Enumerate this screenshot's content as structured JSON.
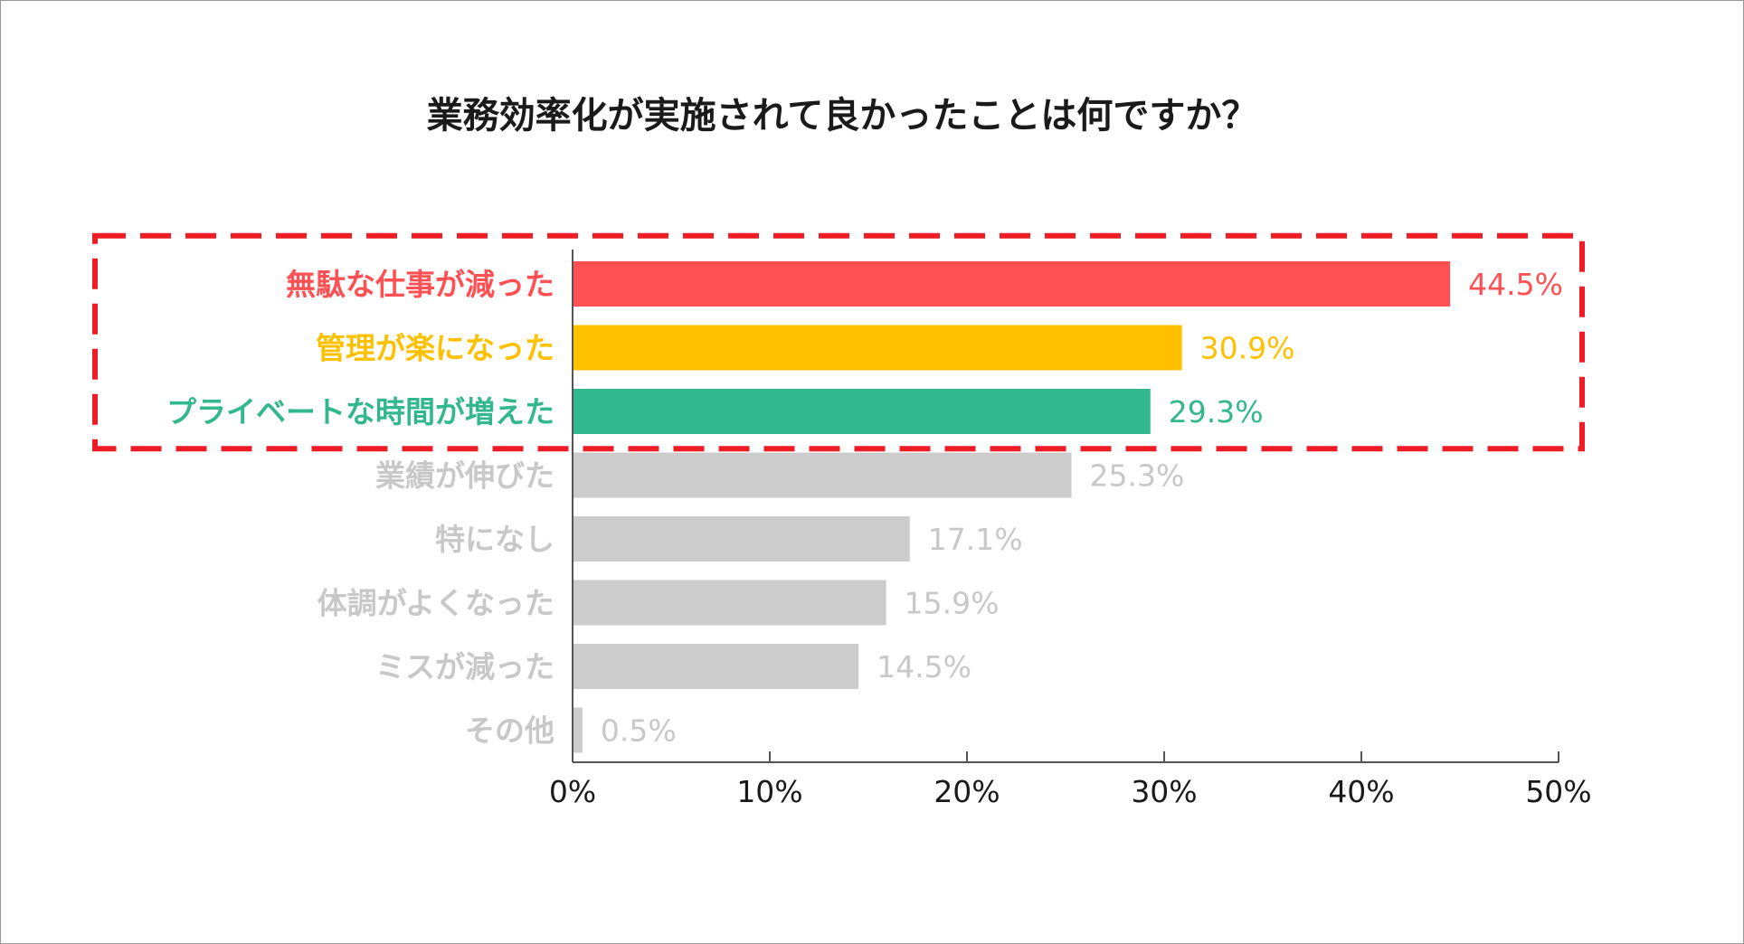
{
  "chart_data": {
    "type": "bar",
    "orientation": "horizontal",
    "title": "業務効率化が実施されて良かったことは何ですか？",
    "categories": [
      "無駄な仕事が減った",
      "管理が楽になった",
      "プライベートな時間が増えた",
      "業績が伸びた",
      "特になし",
      "体調がよくなった",
      "ミスが減った",
      "その他"
    ],
    "values": [
      44.5,
      30.9,
      29.3,
      25.3,
      17.1,
      15.9,
      14.5,
      0.5
    ],
    "value_labels": [
      "44.5%",
      "30.9%",
      "29.3%",
      "25.3%",
      "17.1%",
      "15.9%",
      "14.5%",
      "0.5%"
    ],
    "bar_colors": [
      "#ff5054",
      "#ffc000",
      "#33b88e",
      "#cccccc",
      "#cccccc",
      "#cccccc",
      "#cccccc",
      "#cccccc"
    ],
    "label_colors": [
      "#ff5054",
      "#ffc000",
      "#33b88e",
      "#c8c8c8",
      "#c8c8c8",
      "#c8c8c8",
      "#c8c8c8",
      "#c8c8c8"
    ],
    "xlim": [
      0,
      50
    ],
    "xticks": [
      0,
      10,
      20,
      30,
      40,
      50
    ],
    "xtick_labels": [
      "0%",
      "10%",
      "20%",
      "30%",
      "40%",
      "50%"
    ],
    "xlabel": "",
    "ylabel": "",
    "grid": false,
    "legend": "none",
    "highlight": {
      "style": "dashed-box",
      "color": "#ee1c25",
      "covers_first_n": 3
    }
  }
}
